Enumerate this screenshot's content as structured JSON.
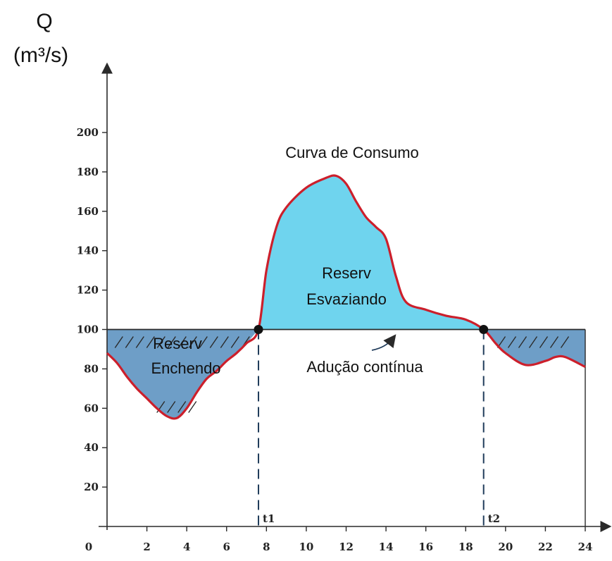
{
  "chart_data": {
    "type": "area",
    "ylabel_symbol": "Q",
    "ylabel_unit": "(m³/s)",
    "origin_label": "0",
    "x_ticks": [
      "2",
      "4",
      "6",
      "8",
      "10",
      "12",
      "14",
      "16",
      "18",
      "20",
      "22",
      "24"
    ],
    "y_ticks": [
      "20",
      "40",
      "60",
      "80",
      "100",
      "120",
      "140",
      "160",
      "180",
      "200"
    ],
    "xlim": [
      0,
      24
    ],
    "ylim": [
      0,
      200
    ],
    "grid": false,
    "constant_supply": 100,
    "consumption": {
      "x": [
        0,
        0.5,
        1,
        1.5,
        2,
        2.5,
        3,
        3.5,
        4,
        4.5,
        5,
        5.5,
        6,
        6.5,
        7,
        7.6,
        8,
        8.5,
        9,
        10,
        11,
        11.5,
        12,
        12.5,
        13,
        13.5,
        14,
        14.5,
        15,
        16,
        17,
        18,
        18.9,
        19.5,
        20,
        21,
        22,
        22.5,
        23,
        24
      ],
      "y": [
        88,
        83,
        76,
        70,
        65,
        60,
        56,
        55,
        60,
        68,
        75,
        79,
        84,
        88,
        93,
        100,
        130,
        152,
        162,
        172,
        177,
        178,
        174,
        165,
        157,
        152,
        146,
        127,
        114,
        110,
        107,
        105,
        100,
        93,
        88,
        82,
        84,
        86,
        86,
        81
      ]
    },
    "t1": {
      "x": 7.6,
      "label": "t1"
    },
    "t2": {
      "x": 18.9,
      "label": "t2"
    },
    "annotations": {
      "consumption_curve": "Curva de Consumo",
      "emptying_1": "Reserv",
      "emptying_2": "Esvaziando",
      "filling_1": "Reserv",
      "filling_2": "Enchendo",
      "supply": "Adução contínua"
    },
    "colors": {
      "curve": "#cc1f2b",
      "emptying_fill": "#6fd4ee",
      "filling_fill": "#6e9ec7",
      "axis": "#2a2a2a",
      "marker": "#111111"
    }
  }
}
